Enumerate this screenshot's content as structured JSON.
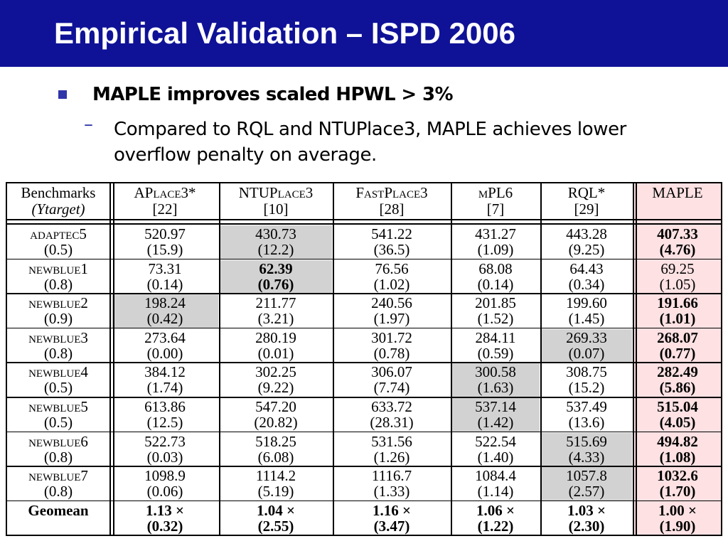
{
  "slide": {
    "title": "Empirical Validation – ISPD 2006",
    "bullet": "MAPLE improves scaled HPWL > 3%",
    "sub_bullet": "Compared to RQL and NTUPlace3, MAPLE achieves lower overflow penalty on average.",
    "bullet_marker": "square-bullet",
    "sub_marker": "–"
  },
  "colors": {
    "title_bar": "#0f1296",
    "highlight_gray": "#d2d2d2",
    "maple_column": "#fde1e3",
    "bullet": "#3035a8"
  },
  "table": {
    "headers": [
      {
        "l1": "Benchmarks",
        "l2": "(Υtarget)"
      },
      {
        "l1": "APlace3*",
        "l2": "[22]"
      },
      {
        "l1": "NTUPlace3",
        "l2": "[10]"
      },
      {
        "l1": "FastPlace3",
        "l2": "[28]"
      },
      {
        "l1": "mPL6",
        "l2": "[7]"
      },
      {
        "l1": "RQL*",
        "l2": "[29]"
      },
      {
        "l1": "MAPLE",
        "l2": ""
      }
    ],
    "rows": [
      {
        "name": "adaptec5",
        "target": "(0.5)",
        "cells": [
          [
            "520.97",
            "(15.9)"
          ],
          [
            "430.73",
            "(12.2)"
          ],
          [
            "541.22",
            "(36.5)"
          ],
          [
            "431.27",
            "(1.09)"
          ],
          [
            "443.28",
            "(9.25)"
          ],
          [
            "407.33",
            "(4.76)"
          ]
        ]
      },
      {
        "name": "newblue1",
        "target": "(0.8)",
        "cells": [
          [
            "73.31",
            "(0.14)"
          ],
          [
            "62.39",
            "(0.76)"
          ],
          [
            "76.56",
            "(1.02)"
          ],
          [
            "68.08",
            "(0.14)"
          ],
          [
            "64.43",
            "(0.34)"
          ],
          [
            "69.25",
            "(1.05)"
          ]
        ]
      },
      {
        "name": "newblue2",
        "target": "(0.9)",
        "cells": [
          [
            "198.24",
            "(0.42)"
          ],
          [
            "211.77",
            "(3.21)"
          ],
          [
            "240.56",
            "(1.97)"
          ],
          [
            "201.85",
            "(1.52)"
          ],
          [
            "199.60",
            "(1.45)"
          ],
          [
            "191.66",
            "(1.01)"
          ]
        ]
      },
      {
        "name": "newblue3",
        "target": "(0.8)",
        "cells": [
          [
            "273.64",
            "(0.00)"
          ],
          [
            "280.19",
            "(0.01)"
          ],
          [
            "301.72",
            "(0.78)"
          ],
          [
            "284.11",
            "(0.59)"
          ],
          [
            "269.33",
            "(0.07)"
          ],
          [
            "268.07",
            "(0.77)"
          ]
        ]
      },
      {
        "name": "newblue4",
        "target": "(0.5)",
        "cells": [
          [
            "384.12",
            "(1.74)"
          ],
          [
            "302.25",
            "(9.22)"
          ],
          [
            "306.07",
            "(7.74)"
          ],
          [
            "300.58",
            "(1.63)"
          ],
          [
            "308.75",
            "(15.2)"
          ],
          [
            "282.49",
            "(5.86)"
          ]
        ]
      },
      {
        "name": "newblue5",
        "target": "(0.5)",
        "cells": [
          [
            "613.86",
            "(12.5)"
          ],
          [
            "547.20",
            "(20.82)"
          ],
          [
            "633.72",
            "(28.31)"
          ],
          [
            "537.14",
            "(1.42)"
          ],
          [
            "537.49",
            "(13.6)"
          ],
          [
            "515.04",
            "(4.05)"
          ]
        ]
      },
      {
        "name": "newblue6",
        "target": "(0.8)",
        "cells": [
          [
            "522.73",
            "(0.03)"
          ],
          [
            "518.25",
            "(6.08)"
          ],
          [
            "531.56",
            "(1.26)"
          ],
          [
            "522.54",
            "(1.40)"
          ],
          [
            "515.69",
            "(4.33)"
          ],
          [
            "494.82",
            "(1.08)"
          ]
        ]
      },
      {
        "name": "newblue7",
        "target": "(0.8)",
        "cells": [
          [
            "1098.9",
            "(0.06)"
          ],
          [
            "1114.2",
            "(5.19)"
          ],
          [
            "1116.7",
            "(1.33)"
          ],
          [
            "1084.4",
            "(1.14)"
          ],
          [
            "1057.8",
            "(2.57)"
          ],
          [
            "1032.6",
            "(1.70)"
          ]
        ]
      }
    ],
    "geomean": {
      "name": "Geomean",
      "cells": [
        [
          "1.13 ×",
          "(0.32)"
        ],
        [
          "1.04 ×",
          "(2.55)"
        ],
        [
          "1.16 ×",
          "(3.47)"
        ],
        [
          "1.06 ×",
          "(1.22)"
        ],
        [
          "1.03 ×",
          "(2.30)"
        ],
        [
          "1.00 ×",
          "(1.90)"
        ]
      ]
    },
    "gray_cells": [
      [
        0,
        1
      ],
      [
        1,
        1
      ],
      [
        2,
        0
      ],
      [
        3,
        4
      ],
      [
        4,
        3
      ],
      [
        5,
        3
      ],
      [
        6,
        4
      ],
      [
        7,
        4
      ]
    ],
    "bold_cells": [
      [
        0,
        5
      ],
      [
        1,
        1
      ],
      [
        2,
        5
      ],
      [
        3,
        5
      ],
      [
        4,
        5
      ],
      [
        5,
        5
      ],
      [
        6,
        5
      ],
      [
        7,
        5
      ]
    ]
  }
}
